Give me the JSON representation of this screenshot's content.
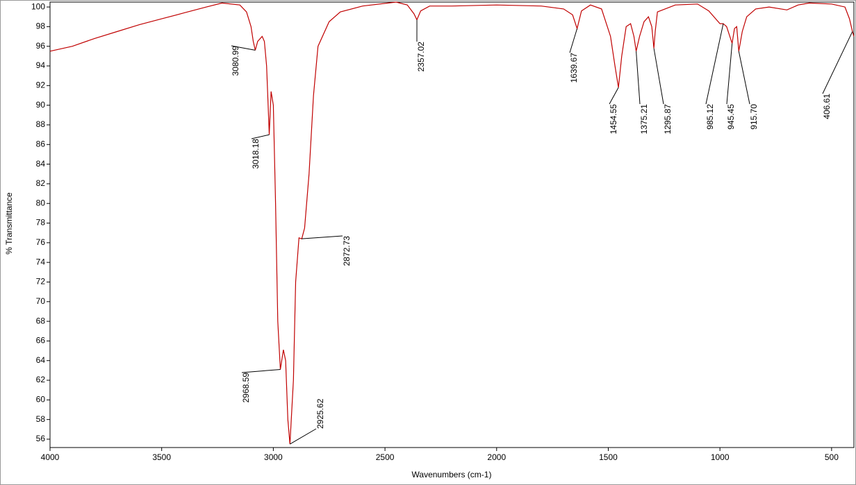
{
  "chart_data": {
    "type": "line",
    "xlabel": "Wavenumbers (cm-1)",
    "ylabel": "% Transmittance",
    "xlim": [
      4000,
      400
    ],
    "ylim": [
      55.15,
      100.5
    ],
    "xticks": [
      4000,
      3500,
      3000,
      2500,
      2000,
      1500,
      1000,
      500
    ],
    "yticks": [
      56,
      58,
      60,
      62,
      64,
      66,
      68,
      70,
      72,
      74,
      76,
      78,
      80,
      82,
      84,
      86,
      88,
      90,
      92,
      94,
      96,
      98,
      100
    ],
    "grid": false,
    "series": [
      {
        "color": "#c00000",
        "x": [
          4000,
          3900,
          3800,
          3700,
          3600,
          3500,
          3400,
          3300,
          3230,
          3150,
          3120,
          3100,
          3090,
          3080.99,
          3070,
          3050,
          3040,
          3030,
          3020,
          3018.18,
          3010,
          3000,
          2990,
          2980,
          2968.59,
          2955,
          2945,
          2935,
          2925.62,
          2910,
          2900,
          2885,
          2872.73,
          2860,
          2840,
          2820,
          2800,
          2750,
          2700,
          2600,
          2450,
          2400,
          2370,
          2357.02,
          2340,
          2300,
          2200,
          2000,
          1800,
          1700,
          1660,
          1639.67,
          1620,
          1580,
          1530,
          1490,
          1470,
          1454.55,
          1440,
          1420,
          1400,
          1385,
          1375.21,
          1360,
          1340,
          1320,
          1305,
          1295.87,
          1290,
          1280,
          1200,
          1100,
          1050,
          1000,
          985.12,
          970,
          945.45,
          935,
          925,
          915.7,
          900,
          880,
          840,
          780,
          700,
          650,
          600,
          500,
          440,
          420,
          406.61,
          400
        ],
        "values": [
          95.5,
          96.0,
          96.8,
          97.5,
          98.2,
          98.8,
          99.4,
          100.0,
          100.4,
          100.2,
          99.5,
          98,
          96.5,
          95.6,
          96.5,
          97,
          96.5,
          94,
          88,
          87,
          91.4,
          90,
          80,
          68,
          63.1,
          65.1,
          64,
          58,
          55.5,
          62,
          72,
          76.5,
          76.4,
          77.5,
          83,
          91,
          96,
          98.5,
          99.5,
          100.1,
          100.5,
          100.2,
          99.3,
          98.7,
          99.6,
          100.1,
          100.1,
          100.2,
          100.1,
          99.8,
          99.2,
          97.8,
          99.6,
          100.2,
          99.8,
          97,
          94,
          91.8,
          95,
          98,
          98.3,
          97,
          95.5,
          97,
          98.5,
          99,
          98,
          95.8,
          97.5,
          99.5,
          100.2,
          100.3,
          99.6,
          98.3,
          98.3,
          98,
          96.3,
          97.8,
          98,
          95.5,
          97.5,
          99,
          99.8,
          100,
          99.7,
          100.2,
          100.4,
          100.3,
          100,
          98.8,
          97.5,
          97
        ]
      }
    ],
    "annotations": [
      {
        "text": "3080.99",
        "x": 3080.99,
        "y": 95.6
      },
      {
        "text": "3018.18",
        "x": 3018.18,
        "y": 87
      },
      {
        "text": "2872.73",
        "x": 2872.73,
        "y": 76.4
      },
      {
        "text": "2968.59",
        "x": 2968.59,
        "y": 63.1
      },
      {
        "text": "2925.62",
        "x": 2925.62,
        "y": 55.5
      },
      {
        "text": "2357.02",
        "x": 2357.02,
        "y": 98.7
      },
      {
        "text": "1639.67",
        "x": 1639.67,
        "y": 97.8
      },
      {
        "text": "1454.55",
        "x": 1454.55,
        "y": 91.8
      },
      {
        "text": "1375.21",
        "x": 1375.21,
        "y": 95.5
      },
      {
        "text": "1295.87",
        "x": 1295.87,
        "y": 95.8
      },
      {
        "text": "985.12",
        "x": 985.12,
        "y": 98.3
      },
      {
        "text": "945.45",
        "x": 945.45,
        "y": 96.3
      },
      {
        "text": "915.70",
        "x": 915.7,
        "y": 95.5
      },
      {
        "text": "406.61",
        "x": 406.61,
        "y": 97.5
      }
    ]
  }
}
